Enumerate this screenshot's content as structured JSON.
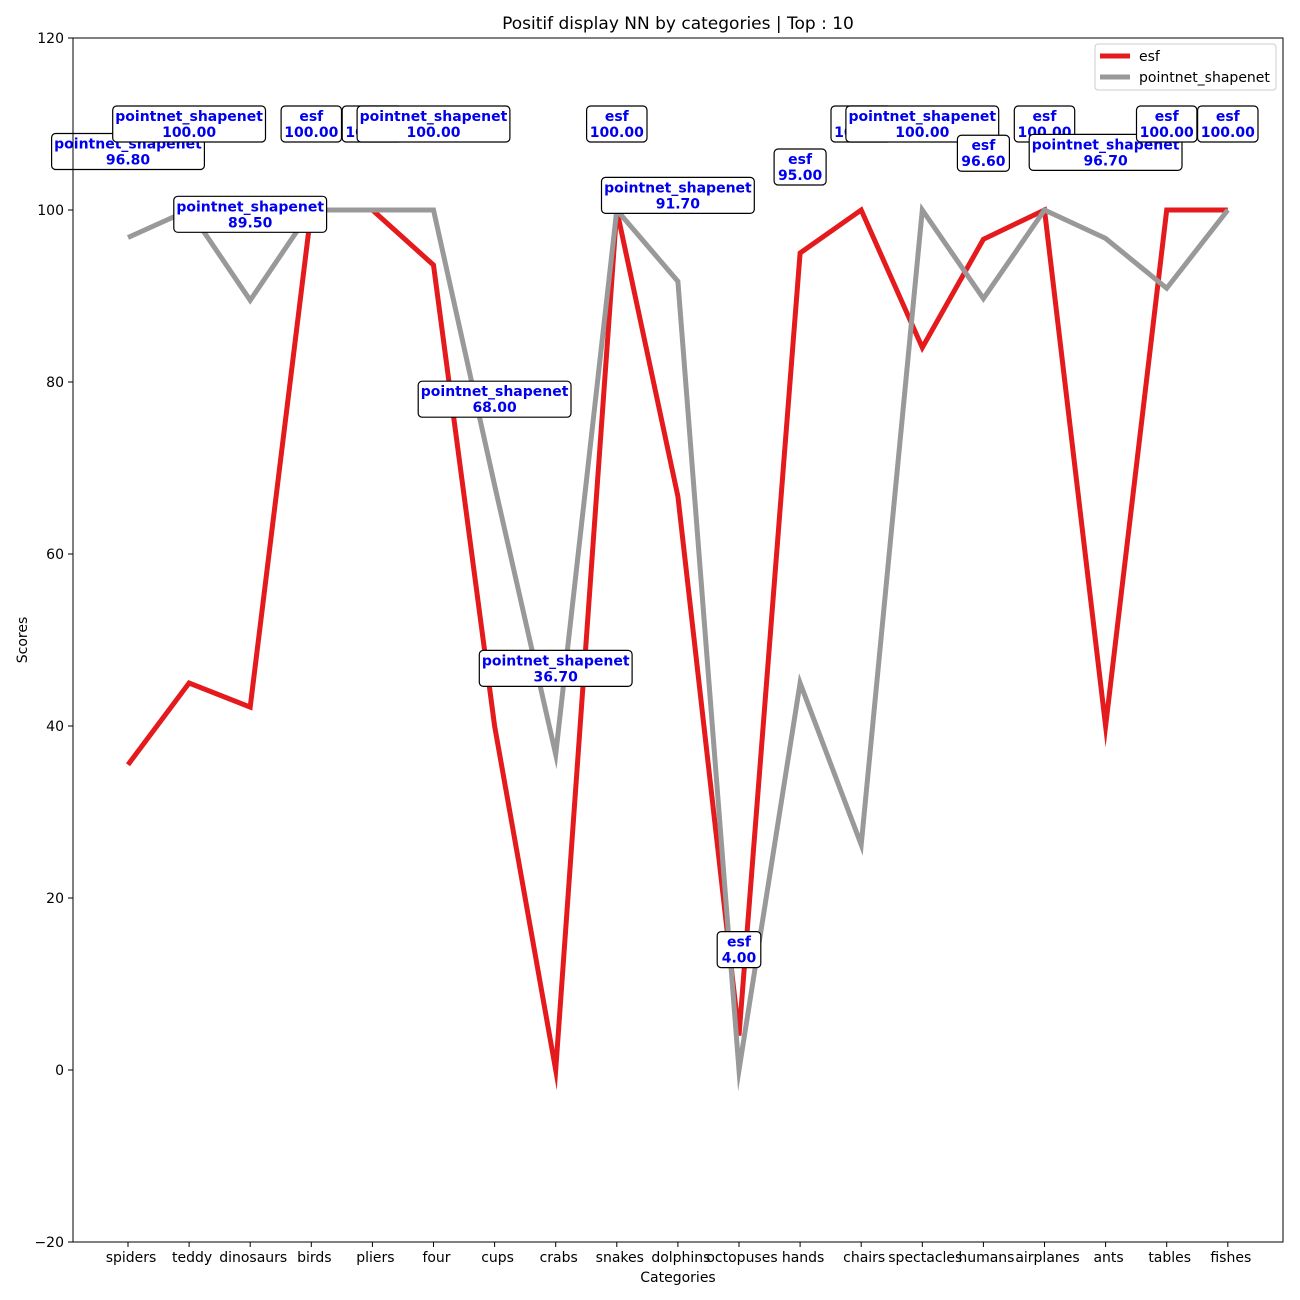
{
  "chart_data": {
    "type": "line",
    "title": "Positif display NN by categories | Top : 10",
    "xlabel": "Categories",
    "ylabel": "Scores",
    "ylim": [
      -20,
      120
    ],
    "yticks": [
      -20,
      0,
      20,
      40,
      60,
      80,
      100,
      120
    ],
    "grid": false,
    "legend_position": "top-right",
    "categories": [
      "spiders",
      "teddy",
      "dinosaurs",
      "birds",
      "pliers",
      "four",
      "cups",
      "crabs",
      "snakes",
      "dolphins",
      "octopuses",
      "hands",
      "chairs",
      "spectacles",
      "humans",
      "airplanes",
      "ants",
      "tables",
      "fishes"
    ],
    "series": [
      {
        "name": "esf",
        "color": "#e41a1c",
        "values": [
          35.5,
          45.0,
          42.2,
          100.0,
          100.0,
          93.6,
          40.0,
          0.0,
          100.0,
          66.7,
          4.0,
          95.0,
          100.0,
          84.0,
          96.6,
          100.0,
          40.0,
          100.0,
          100.0
        ]
      },
      {
        "name": "pointnet_shapenet",
        "color": "#999999",
        "values": [
          96.8,
          100.0,
          89.5,
          100.0,
          100.0,
          100.0,
          68.0,
          36.7,
          100.0,
          91.7,
          0.0,
          45.0,
          26.2,
          100.0,
          89.7,
          100.0,
          96.7,
          90.9,
          100.0
        ]
      }
    ],
    "annotations": [
      {
        "index": 0,
        "series": "pointnet_shapenet",
        "name": "pointnet_shapenet",
        "value": "96.80",
        "y": 106.8
      },
      {
        "index": 1,
        "series": "pointnet_shapenet",
        "name": "pointnet_shapenet",
        "value": "100.00",
        "y": 110.0
      },
      {
        "index": 2,
        "series": "pointnet_shapenet",
        "name": "pointnet_shapenet",
        "value": "89.50",
        "y": 99.5
      },
      {
        "index": 3,
        "series": "esf",
        "name": "esf",
        "value": "100.00",
        "y": 110.0
      },
      {
        "index": 4,
        "series": "esf",
        "name": "esf",
        "value": "100.00",
        "y": 110.0
      },
      {
        "index": 5,
        "series": "pointnet_shapenet",
        "name": "pointnet_shapenet",
        "value": "100.00",
        "y": 110.0
      },
      {
        "index": 6,
        "series": "pointnet_shapenet",
        "name": "pointnet_shapenet",
        "value": "68.00",
        "y": 78.0
      },
      {
        "index": 7,
        "series": "pointnet_shapenet",
        "name": "pointnet_shapenet",
        "value": "36.70",
        "y": 46.7
      },
      {
        "index": 8,
        "series": "esf",
        "name": "esf",
        "value": "100.00",
        "y": 110.0
      },
      {
        "index": 9,
        "series": "pointnet_shapenet",
        "name": "pointnet_shapenet",
        "value": "91.70",
        "y": 101.7
      },
      {
        "index": 10,
        "series": "esf",
        "name": "esf",
        "value": "4.00",
        "y": 14.0
      },
      {
        "index": 11,
        "series": "esf",
        "name": "esf",
        "value": "95.00",
        "y": 105.0
      },
      {
        "index": 12,
        "series": "esf",
        "name": "esf",
        "value": "100.00",
        "y": 110.0
      },
      {
        "index": 13,
        "series": "pointnet_shapenet",
        "name": "pointnet_shapenet",
        "value": "100.00",
        "y": 110.0
      },
      {
        "index": 14,
        "series": "esf",
        "name": "esf",
        "value": "96.60",
        "y": 106.6
      },
      {
        "index": 15,
        "series": "esf",
        "name": "esf",
        "value": "100.00",
        "y": 110.0
      },
      {
        "index": 16,
        "series": "pointnet_shapenet",
        "name": "pointnet_shapenet",
        "value": "96.70",
        "y": 106.7
      },
      {
        "index": 17,
        "series": "esf",
        "name": "esf",
        "value": "100.00",
        "y": 110.0
      },
      {
        "index": 18,
        "series": "esf",
        "name": "esf",
        "value": "100.00",
        "y": 110.0
      }
    ]
  }
}
